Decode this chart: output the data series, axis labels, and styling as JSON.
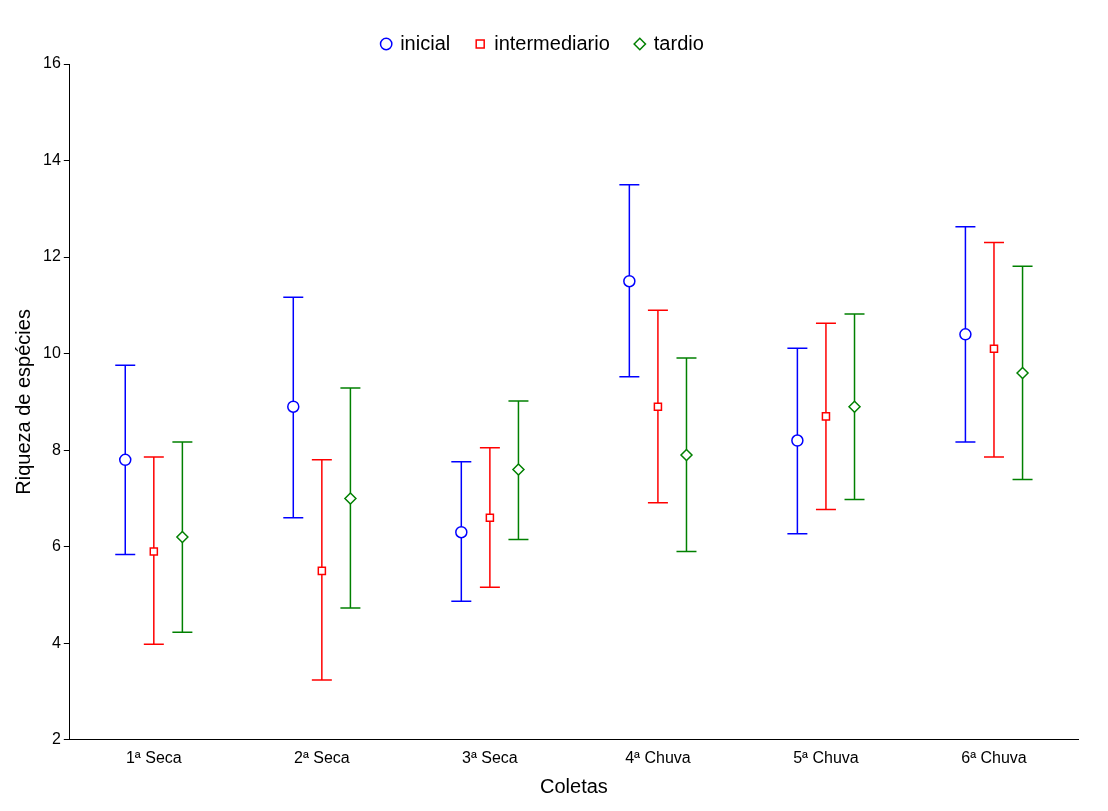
{
  "chart_data": {
    "type": "scatter",
    "xlabel": "Coletas",
    "ylabel": "Riqueza de espécies",
    "categories": [
      "1ª Seca",
      "2ª Seca",
      "3ª Seca",
      "4ª Chuva",
      "5ª Chuva",
      "6ª Chuva"
    ],
    "ylim": [
      2,
      16
    ],
    "yticks": [
      2,
      4,
      6,
      8,
      10,
      12,
      14,
      16
    ],
    "grid": false,
    "legend": "top",
    "series": [
      {
        "name": "inicial",
        "color": "#0000ff",
        "marker": "circle",
        "values": [
          7.8,
          8.9,
          6.3,
          11.5,
          8.2,
          10.4
        ],
        "errors": [
          [
            5.84,
            9.76
          ],
          [
            6.6,
            11.17
          ],
          [
            4.87,
            7.76
          ],
          [
            9.52,
            13.5
          ],
          [
            6.27,
            10.11
          ],
          [
            8.17,
            12.63
          ]
        ]
      },
      {
        "name": "intermediario",
        "color": "#ff0000",
        "marker": "square",
        "values": [
          5.9,
          5.5,
          6.6,
          8.9,
          8.7,
          10.1
        ],
        "errors": [
          [
            3.98,
            7.86
          ],
          [
            3.24,
            7.8
          ],
          [
            5.16,
            8.05
          ],
          [
            6.91,
            10.9
          ],
          [
            6.77,
            10.63
          ],
          [
            7.86,
            12.3
          ]
        ]
      },
      {
        "name": "tardio",
        "color": "#008000",
        "marker": "diamond",
        "values": [
          6.2,
          7.0,
          7.6,
          7.9,
          8.9,
          9.6
        ],
        "errors": [
          [
            4.23,
            8.17
          ],
          [
            4.73,
            9.29
          ],
          [
            6.15,
            9.02
          ],
          [
            5.9,
            9.91
          ],
          [
            6.98,
            10.82
          ],
          [
            7.39,
            11.81
          ]
        ]
      }
    ]
  }
}
